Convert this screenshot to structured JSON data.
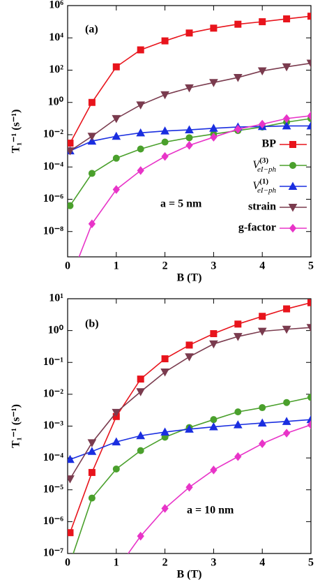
{
  "chart_data": [
    {
      "type": "line",
      "annotations": [
        "(a)",
        "a = 5 nm"
      ],
      "xlabel": "B (T)",
      "ylabel": "T₁⁻¹ (s⁻¹)",
      "yscale": "log",
      "legend": "lower right",
      "x": [
        0.05,
        0.5,
        1,
        1.5,
        2,
        2.5,
        3,
        3.5,
        4,
        4.5,
        5
      ],
      "xlim": [
        0,
        5
      ],
      "xticks": [
        0,
        1,
        2,
        3,
        4,
        5
      ],
      "ylim": [
        2.7e-10,
        1000000
      ],
      "yticks": [
        {
          "value": 1e-08,
          "label": "10⁻⁸"
        },
        {
          "value": 1e-06,
          "label": "10⁻⁶"
        },
        {
          "value": 0.0001,
          "label": "10⁻⁴"
        },
        {
          "value": 0.01,
          "label": "10⁻²"
        },
        {
          "value": 1,
          "label": "10⁰"
        },
        {
          "value": 100,
          "label": "10²"
        },
        {
          "value": 10000,
          "label": "10⁴"
        },
        {
          "value": 1000000,
          "label": "10⁶"
        }
      ],
      "series": [
        {
          "name": "BP",
          "color": "#e8141c",
          "marker": "square",
          "values": [
            0.003,
            1,
            160,
            1800,
            6500,
            20000,
            40000,
            70000,
            100000,
            150000,
            220000
          ]
        },
        {
          "name": "V(3)eI−ph",
          "color": "#4aa02c",
          "marker": "circle",
          "values": [
            4e-07,
            4e-05,
            0.00035,
            0.0013,
            0.0035,
            0.0065,
            0.011,
            0.018,
            0.03,
            0.06,
            0.1
          ]
        },
        {
          "name": "V(1)eI−ph",
          "color": "#1a2ee0",
          "marker": "triangle-up",
          "values": [
            0.001,
            0.004,
            0.008,
            0.013,
            0.017,
            0.02,
            0.025,
            0.03,
            0.032,
            0.035,
            0.035
          ]
        },
        {
          "name": "strain",
          "color": "#7a3b4e",
          "marker": "triangle-down",
          "values": [
            0.001,
            0.008,
            0.1,
            0.7,
            3,
            8,
            17,
            35,
            90,
            160,
            270
          ]
        },
        {
          "name": "g-factor",
          "color": "#e834c8",
          "marker": "diamond",
          "values": [
            1e-11,
            3e-08,
            4e-06,
            6e-05,
            0.00045,
            0.0022,
            0.007,
            0.022,
            0.045,
            0.1,
            0.15
          ]
        }
      ]
    },
    {
      "type": "line",
      "annotations": [
        "(b)",
        "a = 10 nm"
      ],
      "xlabel": "B (T)",
      "ylabel": "T₁⁻¹ (s⁻¹)",
      "yscale": "log",
      "x": [
        0.05,
        0.5,
        1,
        1.5,
        2,
        2.5,
        3,
        3.5,
        4,
        4.5,
        5
      ],
      "xlim": [
        0,
        5
      ],
      "xticks": [
        0,
        1,
        2,
        3,
        4,
        5
      ],
      "ylim": [
        1e-07,
        10
      ],
      "yticks": [
        {
          "value": 1e-07,
          "label": "10⁻⁷"
        },
        {
          "value": 1e-06,
          "label": "10⁻⁶"
        },
        {
          "value": 1e-05,
          "label": "10⁻⁵"
        },
        {
          "value": 0.0001,
          "label": "10⁻⁴"
        },
        {
          "value": 0.001,
          "label": "10⁻³"
        },
        {
          "value": 0.01,
          "label": "10⁻²"
        },
        {
          "value": 0.1,
          "label": "10⁻¹"
        },
        {
          "value": 1,
          "label": "10⁰"
        },
        {
          "value": 10,
          "label": "10¹"
        }
      ],
      "series": [
        {
          "color": "#e8141c",
          "marker": "square",
          "values": [
            4.5e-07,
            3.5e-05,
            0.002,
            0.03,
            0.13,
            0.35,
            0.8,
            1.6,
            2.8,
            4.8,
            7.5
          ]
        },
        {
          "color": "#4aa02c",
          "marker": "circle",
          "values": [
            5e-08,
            5.5e-06,
            4.5e-05,
            0.00017,
            0.00045,
            0.0009,
            0.0016,
            0.0028,
            0.0038,
            0.0055,
            0.008
          ]
        },
        {
          "color": "#1a2ee0",
          "marker": "triangle-up",
          "values": [
            9e-05,
            0.00016,
            0.00032,
            0.0005,
            0.00065,
            0.0008,
            0.00095,
            0.0011,
            0.00125,
            0.0014,
            0.0016
          ]
        },
        {
          "color": "#7a3b4e",
          "marker": "triangle-down",
          "values": [
            2.2e-05,
            0.0003,
            0.0027,
            0.012,
            0.05,
            0.15,
            0.38,
            0.65,
            0.95,
            1.1,
            1.25
          ]
        },
        {
          "color": "#e834c8",
          "marker": "diamond",
          "values": [
            null,
            null,
            3e-08,
            3.5e-07,
            2.6e-06,
            1.2e-05,
            4.2e-05,
            0.00011,
            0.00028,
            0.0006,
            0.0011
          ]
        }
      ]
    }
  ]
}
